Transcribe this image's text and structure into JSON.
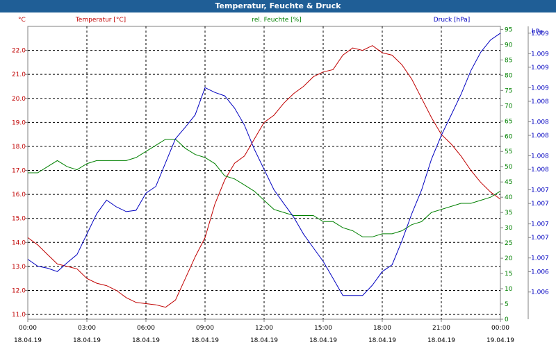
{
  "window": {
    "title": "Temperatur, Feuchte & Druck"
  },
  "chart_data": {
    "type": "line",
    "title": "Temperatur, Feuchte & Druck",
    "x_ticks": [
      {
        "time": "00:00",
        "date": "18.04.19",
        "hour": 0
      },
      {
        "time": "03:00",
        "date": "18.04.19",
        "hour": 3
      },
      {
        "time": "06:00",
        "date": "18.04.19",
        "hour": 6
      },
      {
        "time": "09:00",
        "date": "18.04.19",
        "hour": 9
      },
      {
        "time": "12:00",
        "date": "18.04.19",
        "hour": 12
      },
      {
        "time": "15:00",
        "date": "18.04.19",
        "hour": 15
      },
      {
        "time": "18:00",
        "date": "18.04.19",
        "hour": 18
      },
      {
        "time": "21:00",
        "date": "18.04.19",
        "hour": 21
      },
      {
        "time": "00:00",
        "date": "19.04.19",
        "hour": 24
      }
    ],
    "xlim": [
      0,
      24
    ],
    "grid": true,
    "axes": {
      "temperature": {
        "label": "Temperatur [°C]",
        "unit": "°C",
        "color": "#c00000",
        "ylim": [
          10.8,
          23.0
        ],
        "ticks": [
          11.0,
          12.0,
          13.0,
          14.0,
          15.0,
          16.0,
          17.0,
          18.0,
          19.0,
          20.0,
          21.0,
          22.0
        ],
        "tick_labels": [
          "11.0",
          "12.0",
          "13.0",
          "14.0",
          "15.0",
          "16.0",
          "17.0",
          "18.0",
          "19.0",
          "20.0",
          "21.0",
          "22.0"
        ]
      },
      "humidity": {
        "label": "rel. Feuchte [%]",
        "unit": "%",
        "color": "#008000",
        "ylim": [
          0,
          96
        ],
        "ticks": [
          0,
          5,
          10,
          15,
          20,
          25,
          30,
          35,
          40,
          45,
          50,
          55,
          60,
          65,
          70,
          75,
          80,
          85,
          90,
          95
        ],
        "tick_labels": [
          "0",
          "5",
          "10",
          "15",
          "20",
          "25",
          "30",
          "35",
          "40",
          "45",
          "50",
          "55",
          "60",
          "65",
          "70",
          "75",
          "80",
          "85",
          "90",
          "95"
        ]
      },
      "pressure": {
        "label": "Druck [hPa]",
        "unit": "hPa",
        "color": "#0000c0",
        "ylim": [
          1005.6,
          1009.9
        ],
        "ticks": [
          1006,
          1006.3,
          1006.5,
          1006.8,
          1007,
          1007.3,
          1007.5,
          1007.8,
          1008,
          1008.3,
          1008.5,
          1008.8,
          1009,
          1009.3,
          1009.5,
          1009.8
        ],
        "tick_labels": [
          "1.006",
          "1.006",
          "1.007",
          "1.007",
          "1.007",
          "1.007",
          "1.007",
          "1.008",
          "1.008",
          "1.008",
          "1.008",
          "1.008",
          "1.009",
          "1.009",
          "1.009",
          "1.009"
        ]
      }
    },
    "series": [
      {
        "name": "Temperatur [°C]",
        "axis": "temperature",
        "color": "#c00000",
        "x": [
          0,
          0.5,
          1,
          1.5,
          2,
          2.5,
          3,
          3.5,
          4,
          4.5,
          5,
          5.5,
          6,
          6.5,
          7,
          7.5,
          8,
          8.5,
          9,
          9.5,
          10,
          10.5,
          11,
          11.5,
          12,
          12.5,
          13,
          13.5,
          14,
          14.5,
          15,
          15.5,
          16,
          16.5,
          17,
          17.5,
          18,
          18.5,
          19,
          19.5,
          20,
          20.5,
          21,
          21.5,
          22,
          22.5,
          23,
          23.5,
          24
        ],
        "y": [
          14.2,
          13.9,
          13.5,
          13.1,
          13.0,
          12.9,
          12.5,
          12.3,
          12.2,
          12.0,
          11.7,
          11.5,
          11.45,
          11.4,
          11.3,
          11.6,
          12.5,
          13.4,
          14.2,
          15.6,
          16.6,
          17.3,
          17.6,
          18.3,
          19.0,
          19.3,
          19.8,
          20.2,
          20.5,
          20.9,
          21.1,
          21.2,
          21.8,
          22.1,
          22.0,
          22.2,
          21.9,
          21.8,
          21.4,
          20.8,
          20.0,
          19.2,
          18.5,
          18.1,
          17.6,
          17.0,
          16.5,
          16.1,
          15.8
        ]
      },
      {
        "name": "rel. Feuchte [%]",
        "axis": "humidity",
        "color": "#008000",
        "x": [
          0,
          0.5,
          1,
          1.5,
          2,
          2.5,
          3,
          3.5,
          4,
          4.5,
          5,
          5.5,
          6,
          6.5,
          7,
          7.5,
          8,
          8.5,
          9,
          9.5,
          10,
          10.5,
          11,
          11.5,
          12,
          12.5,
          13,
          13.5,
          14,
          14.5,
          15,
          15.5,
          16,
          16.5,
          17,
          17.5,
          18,
          18.5,
          19,
          19.5,
          20,
          20.5,
          21,
          21.5,
          22,
          22.5,
          23,
          23.5,
          24
        ],
        "y": [
          48,
          48,
          50,
          52,
          50,
          49,
          51,
          52,
          52,
          52,
          52,
          53,
          55,
          57,
          59,
          59,
          56,
          54,
          53,
          51,
          47,
          46,
          44,
          42,
          39,
          36,
          35,
          34,
          34,
          34,
          32,
          32,
          30,
          29,
          27,
          27,
          28,
          28,
          29,
          31,
          32,
          35,
          36,
          37,
          38,
          38,
          39,
          40,
          42
        ]
      },
      {
        "name": "Druck [hPa]",
        "axis": "pressure",
        "color": "#0000c0",
        "x": [
          0,
          0.5,
          1,
          1.5,
          2,
          2.5,
          3,
          3.5,
          4,
          4.5,
          5,
          5.5,
          6,
          6.5,
          7,
          7.5,
          8,
          8.5,
          9,
          9.5,
          10,
          10.5,
          11,
          11.5,
          12,
          12.5,
          13,
          13.5,
          14,
          14.5,
          15,
          15.5,
          16,
          16.5,
          17,
          17.5,
          18,
          18.5,
          19,
          19.5,
          20,
          20.5,
          21,
          21.5,
          22,
          22.5,
          23,
          23.5,
          24
        ],
        "y": [
          1006.48,
          1006.38,
          1006.35,
          1006.3,
          1006.43,
          1006.55,
          1006.85,
          1007.15,
          1007.35,
          1007.25,
          1007.18,
          1007.2,
          1007.45,
          1007.55,
          1007.9,
          1008.25,
          1008.42,
          1008.6,
          1009.0,
          1008.93,
          1008.88,
          1008.7,
          1008.45,
          1008.1,
          1007.8,
          1007.5,
          1007.3,
          1007.1,
          1006.85,
          1006.65,
          1006.45,
          1006.2,
          1005.95,
          1005.95,
          1005.95,
          1006.1,
          1006.3,
          1006.4,
          1006.75,
          1007.15,
          1007.5,
          1007.95,
          1008.3,
          1008.6,
          1008.9,
          1009.25,
          1009.52,
          1009.7,
          1009.8
        ]
      }
    ]
  }
}
